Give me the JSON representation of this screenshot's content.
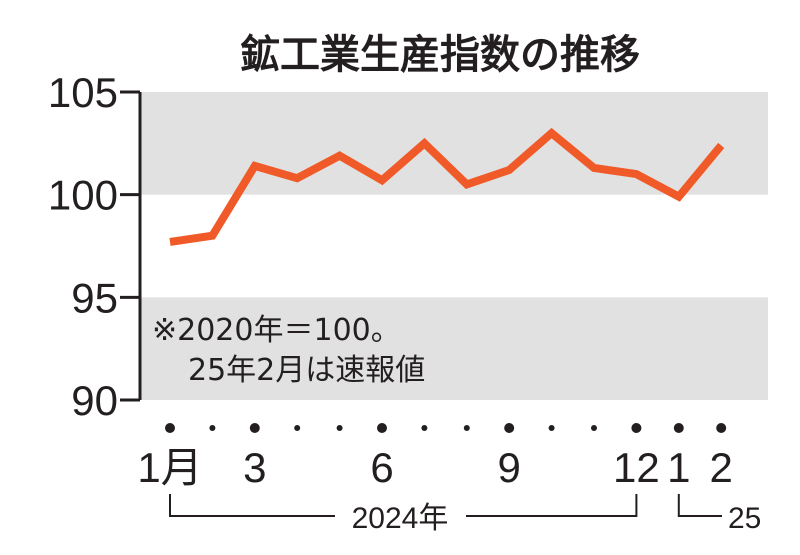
{
  "chart_data": {
    "type": "line",
    "title": "鉱工業生産指数の推移",
    "x": [
      "2024-01",
      "2024-02",
      "2024-03",
      "2024-04",
      "2024-05",
      "2024-06",
      "2024-07",
      "2024-08",
      "2024-09",
      "2024-10",
      "2024-11",
      "2024-12",
      "2025-01",
      "2025-02"
    ],
    "x_tick_labels": [
      "1月",
      "",
      "3",
      "",
      "",
      "6",
      "",
      "",
      "9",
      "",
      "",
      "12",
      "1",
      "2"
    ],
    "values": [
      97.7,
      98.0,
      101.4,
      100.8,
      101.9,
      100.7,
      102.5,
      100.5,
      101.2,
      103.0,
      101.3,
      101.0,
      99.9,
      102.4
    ],
    "ylim": [
      90,
      105
    ],
    "y_ticks": [
      "90",
      "95",
      "100",
      "105"
    ],
    "band_ranges": [
      [
        90,
        95
      ],
      [
        100,
        105
      ]
    ],
    "year_labels": [
      "2024年",
      "25"
    ],
    "notes": [
      "※2020年＝100。",
      "25年2月は速報値"
    ],
    "colors": {
      "line": "#f05a28",
      "band": "#e1e1e1",
      "axis": "#231f20"
    }
  }
}
